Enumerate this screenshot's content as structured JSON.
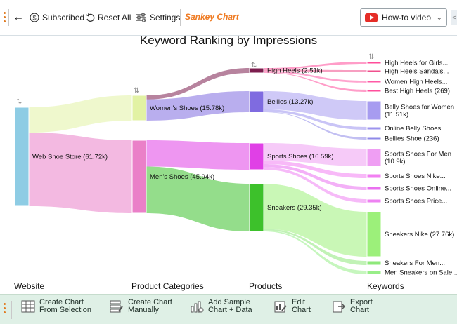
{
  "toolbar": {
    "back_label": "←",
    "subscribed_label": "Subscribed",
    "reset_label": "Reset All",
    "settings_label": "Settings",
    "sankey_label": "Sankey Chart",
    "howto_label": "How-to video",
    "edge_label": "<"
  },
  "bottombar": {
    "create_selection": [
      "Create Chart",
      "From Selection"
    ],
    "create_manual": [
      "Create Chart",
      "Manually"
    ],
    "add_sample": [
      "Add Sample",
      "Chart + Data"
    ],
    "edit_chart": [
      "Edit",
      "Chart"
    ],
    "export_chart": [
      "Export",
      "Chart"
    ]
  },
  "chart_data": {
    "type": "sankey",
    "title": "Keyword Ranking by Impressions",
    "levels": [
      "Website",
      "Product Categories",
      "Products",
      "Keywords"
    ],
    "nodes": [
      {
        "id": "web",
        "label": "Web Shoe Store (61.72k)",
        "value": 61.72,
        "level": 0,
        "color": "#8ecce4"
      },
      {
        "id": "women",
        "label": "Women's Shoes (15.78k)",
        "value": 15.78,
        "level": 1,
        "color": "#e2f2a4"
      },
      {
        "id": "men",
        "label": "Men's Shoes (45.94k)",
        "value": 45.94,
        "level": 1,
        "color": "#ea80c8"
      },
      {
        "id": "heels",
        "label": "High Heels (2.51k)",
        "value": 2.51,
        "level": 2,
        "color": "#7c1d4e"
      },
      {
        "id": "bellies",
        "label": "Bellies (13.27k)",
        "value": 13.27,
        "level": 2,
        "color": "#7f6be0"
      },
      {
        "id": "sports",
        "label": "Sports Shoes (16.59k)",
        "value": 16.59,
        "level": 2,
        "color": "#e040e6"
      },
      {
        "id": "sneakers",
        "label": "Sneakers (29.35k)",
        "value": 29.35,
        "level": 2,
        "color": "#3dc12b"
      },
      {
        "id": "k1",
        "label": "High Heels for Girls...",
        "level": 3,
        "color": "#ff4d9a"
      },
      {
        "id": "k2",
        "label": "High Heels Sandals...",
        "level": 3,
        "color": "#f0508e"
      },
      {
        "id": "k3",
        "label": "Women High Heels...",
        "level": 3,
        "color": "#ff5aa6"
      },
      {
        "id": "k4",
        "label": "Best High Heels (269)",
        "value": 0.269,
        "level": 3,
        "color": "#ff4f9c"
      },
      {
        "id": "k5",
        "label": "Belly Shoes for Women (11.51k)",
        "value": 11.51,
        "level": 3,
        "color": "#a79cf0"
      },
      {
        "id": "k6",
        "label": "Online Belly Shoes...",
        "level": 3,
        "color": "#9d94ee"
      },
      {
        "id": "k7",
        "label": "Bellies Shoe (236)",
        "value": 0.236,
        "level": 3,
        "color": "#8f8ae8"
      },
      {
        "id": "k8",
        "label": "Sports Shoes For Men (10.9k)",
        "value": 10.9,
        "level": 3,
        "color": "#ef9ef3"
      },
      {
        "id": "k9",
        "label": "Sports Shoes Nike...",
        "level": 3,
        "color": "#f27ff2"
      },
      {
        "id": "k10",
        "label": "Sports Shoes Online...",
        "level": 3,
        "color": "#ea70f0"
      },
      {
        "id": "k11",
        "label": "Sports Shoes Price...",
        "level": 3,
        "color": "#ee82f2"
      },
      {
        "id": "k12",
        "label": "Sneakers Nike (27.76k)",
        "value": 27.76,
        "level": 3,
        "color": "#9cf07a"
      },
      {
        "id": "k13",
        "label": "Sneakers For Men...",
        "level": 3,
        "color": "#8ee87a"
      },
      {
        "id": "k14",
        "label": "Men Sneakers on Sale...",
        "level": 3,
        "color": "#98ee88"
      }
    ],
    "links": [
      {
        "source": "web",
        "target": "women",
        "value": 15.78
      },
      {
        "source": "web",
        "target": "men",
        "value": 45.94
      },
      {
        "source": "women",
        "target": "heels",
        "value": 2.51
      },
      {
        "source": "women",
        "target": "bellies",
        "value": 13.27
      },
      {
        "source": "men",
        "target": "sports",
        "value": 16.59
      },
      {
        "source": "men",
        "target": "sneakers",
        "value": 29.35
      },
      {
        "source": "heels",
        "target": "k1",
        "value": 0.8
      },
      {
        "source": "heels",
        "target": "k2",
        "value": 0.75
      },
      {
        "source": "heels",
        "target": "k3",
        "value": 0.69
      },
      {
        "source": "heels",
        "target": "k4",
        "value": 0.269
      },
      {
        "source": "bellies",
        "target": "k5",
        "value": 11.51
      },
      {
        "source": "bellies",
        "target": "k6",
        "value": 1.52
      },
      {
        "source": "bellies",
        "target": "k7",
        "value": 0.236
      },
      {
        "source": "sports",
        "target": "k8",
        "value": 10.9
      },
      {
        "source": "sports",
        "target": "k9",
        "value": 2.2
      },
      {
        "source": "sports",
        "target": "k10",
        "value": 1.9
      },
      {
        "source": "sports",
        "target": "k11",
        "value": 1.59
      },
      {
        "source": "sneakers",
        "target": "k12",
        "value": 27.76
      },
      {
        "source": "sneakers",
        "target": "k13",
        "value": 0.9
      },
      {
        "source": "sneakers",
        "target": "k14",
        "value": 0.69
      }
    ]
  }
}
